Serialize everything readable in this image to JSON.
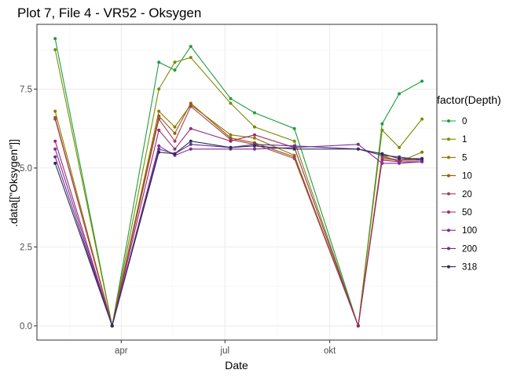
{
  "chart_data": {
    "type": "line",
    "title": "Plot 7, File 4 - VR52  -  Oksygen",
    "xlabel": "Date",
    "ylabel": ".data[[\"Oksygen\"]]",
    "legend_title": "factor(Depth)",
    "legend_position": "right",
    "grid": true,
    "x_type": "date",
    "x": [
      "2021-02-02",
      "2021-03-24",
      "2021-05-04",
      "2021-05-18",
      "2021-06-01",
      "2021-06-15",
      "2021-07-06",
      "2021-07-27",
      "2021-08-31",
      "2021-09-28",
      "2021-10-26",
      "2021-11-16",
      "2021-12-01",
      "2021-12-21"
    ],
    "x_ticks": [
      {
        "date": "2021-04-01",
        "label": "apr"
      },
      {
        "date": "2021-07-01",
        "label": "jul"
      },
      {
        "date": "2021-10-01",
        "label": "okt"
      }
    ],
    "xlim": [
      "2021-01-17",
      "2022-01-03"
    ],
    "y_ticks": [
      0.0,
      2.5,
      5.0,
      7.5
    ],
    "y_tick_labels": [
      "0.0",
      "2.5",
      "5.0",
      "7.5"
    ],
    "ylim": [
      -0.45,
      9.55
    ],
    "series": [
      {
        "name": "0",
        "color": "#1f9e3c",
        "values": [
          9.1,
          0.0,
          8.35,
          8.1,
          8.85,
          null,
          7.2,
          6.75,
          6.25,
          null,
          0.0,
          6.4,
          7.35,
          7.75
        ]
      },
      {
        "name": "1",
        "color": "#7a8b00",
        "values": [
          8.75,
          0.0,
          7.5,
          8.35,
          8.5,
          null,
          7.05,
          6.3,
          5.85,
          null,
          0.0,
          6.2,
          5.65,
          6.55
        ]
      },
      {
        "name": "5",
        "color": "#8e7b00",
        "values": [
          6.8,
          0.0,
          6.8,
          6.3,
          7.0,
          null,
          6.05,
          5.95,
          5.4,
          null,
          0.0,
          5.4,
          5.2,
          5.5
        ]
      },
      {
        "name": "10",
        "color": "#a05a00",
        "values": [
          6.6,
          0.0,
          6.65,
          6.1,
          7.05,
          null,
          5.95,
          5.8,
          5.35,
          null,
          0.0,
          5.35,
          5.25,
          5.3
        ]
      },
      {
        "name": "20",
        "color": "#a0445a",
        "values": [
          6.55,
          0.0,
          6.55,
          5.85,
          6.95,
          null,
          5.9,
          5.75,
          5.3,
          null,
          0.0,
          5.3,
          5.25,
          5.25
        ]
      },
      {
        "name": "50",
        "color": "#9a2a6e",
        "values": [
          5.85,
          0.0,
          6.2,
          5.6,
          6.25,
          null,
          5.85,
          6.05,
          5.65,
          null,
          0.0,
          5.25,
          5.2,
          5.2
        ]
      },
      {
        "name": "100",
        "color": "#842a96",
        "values": [
          5.6,
          0.0,
          5.7,
          5.4,
          5.6,
          null,
          5.6,
          5.6,
          5.65,
          null,
          5.75,
          5.15,
          5.15,
          5.2
        ]
      },
      {
        "name": "200",
        "color": "#61338f",
        "values": [
          5.35,
          0.0,
          5.6,
          5.45,
          5.75,
          null,
          5.65,
          5.75,
          5.7,
          null,
          5.6,
          5.4,
          5.35,
          5.25
        ]
      },
      {
        "name": "318",
        "color": "#2d2d5a",
        "values": [
          5.15,
          0.0,
          5.5,
          5.45,
          5.85,
          null,
          5.65,
          5.7,
          5.6,
          null,
          5.6,
          5.45,
          5.3,
          5.3
        ]
      }
    ]
  }
}
